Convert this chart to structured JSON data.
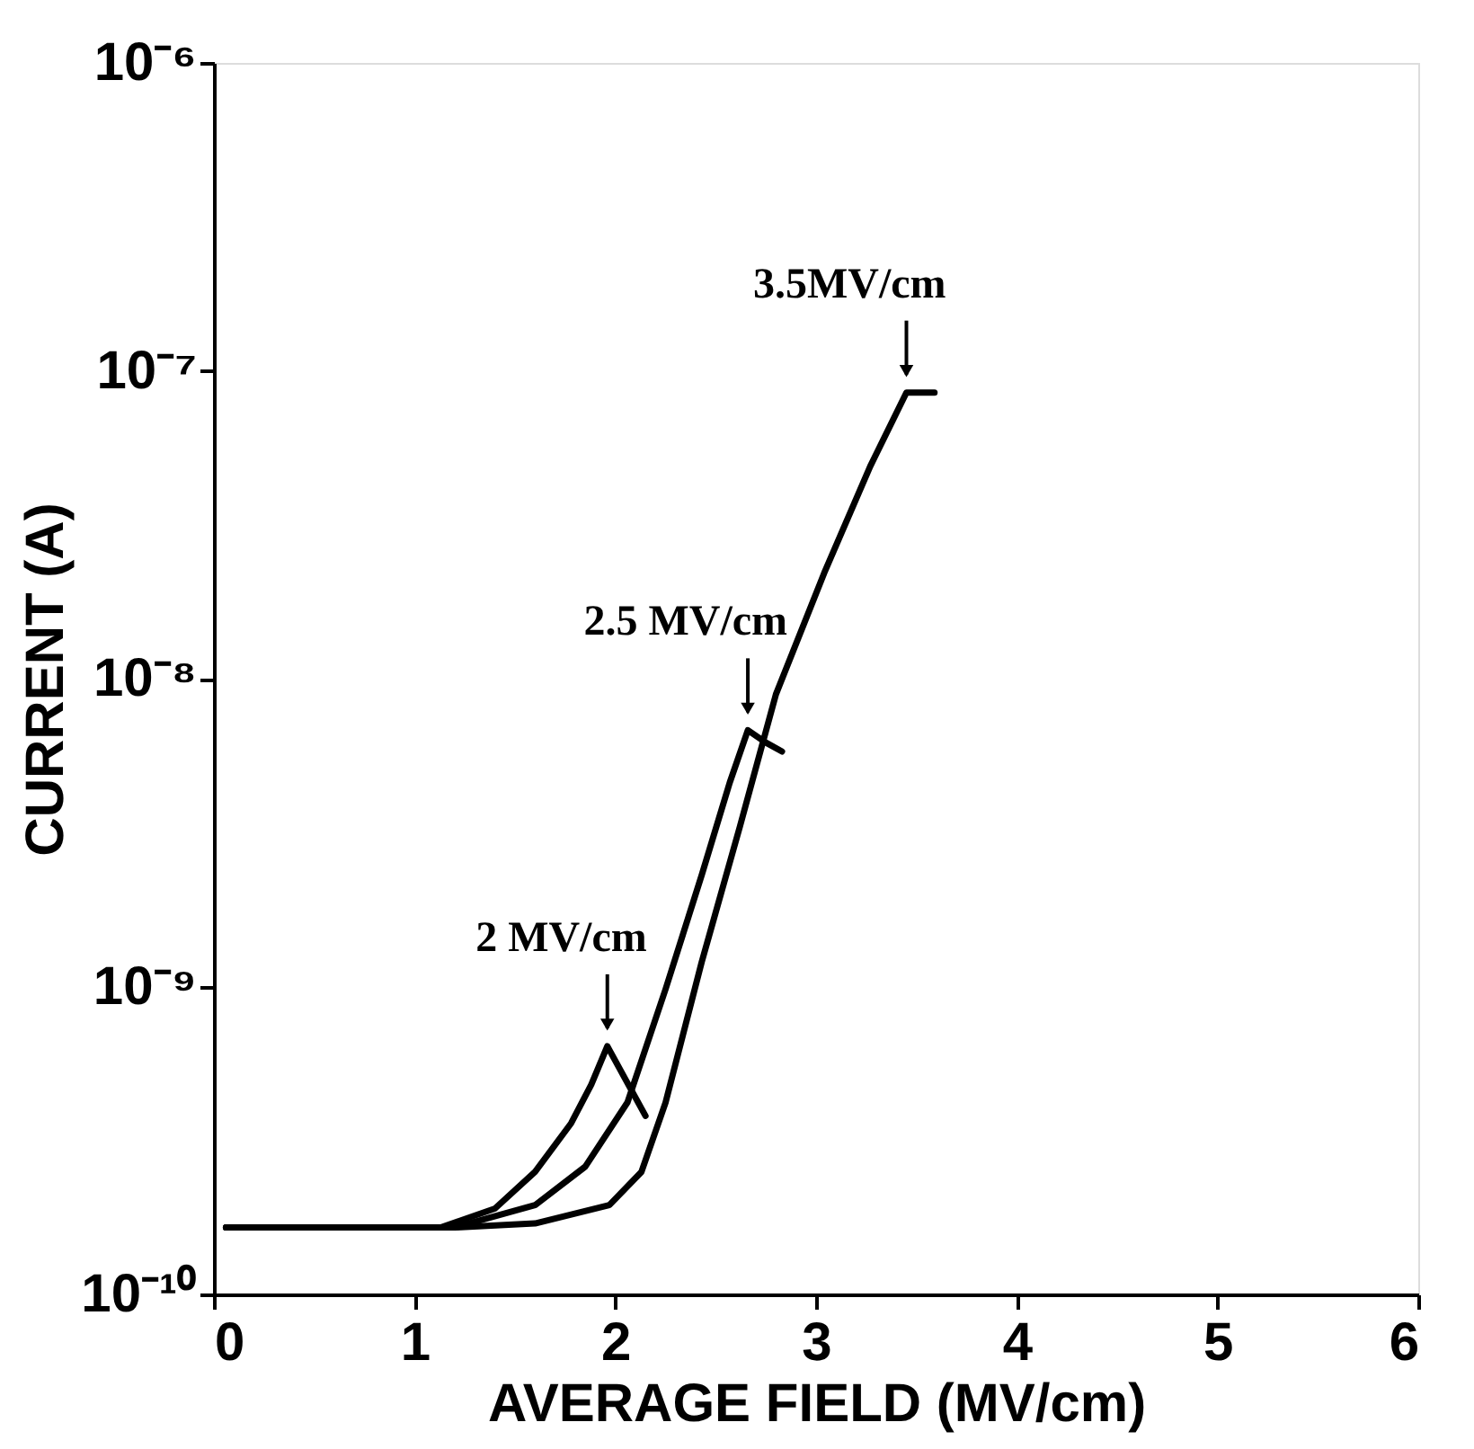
{
  "chart_data": {
    "type": "line",
    "xlabel": "AVERAGE  FIELD (MV/cm)",
    "ylabel": "CURRENT (A)",
    "log": "y",
    "xlim": [
      0,
      6
    ],
    "xticks": [
      0,
      1,
      2,
      3,
      4,
      5,
      6
    ],
    "ylim": [
      1e-10,
      1e-06
    ],
    "yticks": [
      {
        "value": 1e-10,
        "label": "10⁻¹⁰"
      },
      {
        "value": 1e-09,
        "label": "10⁻⁹"
      },
      {
        "value": 1e-08,
        "label": "10⁻⁸"
      },
      {
        "value": 1e-07,
        "label": "10⁻⁷"
      },
      {
        "value": 1e-06,
        "label": "10⁻⁶"
      }
    ],
    "grid": false,
    "legend": false,
    "marker": "none",
    "line_style": "solid",
    "series": [
      {
        "color": "#000000",
        "x": [
          0.06,
          0.6,
          1.13,
          1.4,
          1.6,
          1.78,
          1.88,
          1.96,
          2.05,
          2.15
        ],
        "values": [
          1.65e-10,
          1.65e-10,
          1.65e-10,
          1.9e-10,
          2.5e-10,
          3.6e-10,
          4.8e-10,
          6.4e-10,
          5e-10,
          3.8e-10
        ]
      },
      {
        "color": "#000000",
        "x": [
          0.06,
          0.6,
          1.2,
          1.6,
          1.85,
          2.06,
          2.25,
          2.43,
          2.57,
          2.66,
          2.75,
          2.83
        ],
        "values": [
          1.65e-10,
          1.65e-10,
          1.65e-10,
          1.95e-10,
          2.6e-10,
          4.2e-10,
          9.8e-10,
          2.3e-09,
          4.6e-09,
          6.8e-09,
          6.2e-09,
          5.8e-09
        ]
      },
      {
        "color": "#000000",
        "x": [
          0.06,
          0.6,
          1.2,
          1.6,
          1.97,
          2.13,
          2.25,
          2.43,
          2.62,
          2.8,
          3.04,
          3.27,
          3.45,
          3.59
        ],
        "values": [
          1.65e-10,
          1.65e-10,
          1.65e-10,
          1.7e-10,
          1.95e-10,
          2.5e-10,
          4.2e-10,
          1.2e-09,
          3.3e-09,
          8.9e-09,
          2.2e-08,
          4.9e-08,
          8.5e-08,
          8.5e-08
        ]
      }
    ],
    "annotations": [
      {
        "text": "2 MV/cm",
        "x": 1.96,
        "y": 6.4e-10
      },
      {
        "text": "2.5 MV/cm",
        "x": 2.66,
        "y": 6.8e-09
      },
      {
        "text": "3.5MV/cm",
        "x": 3.45,
        "y": 8.5e-08
      }
    ]
  }
}
